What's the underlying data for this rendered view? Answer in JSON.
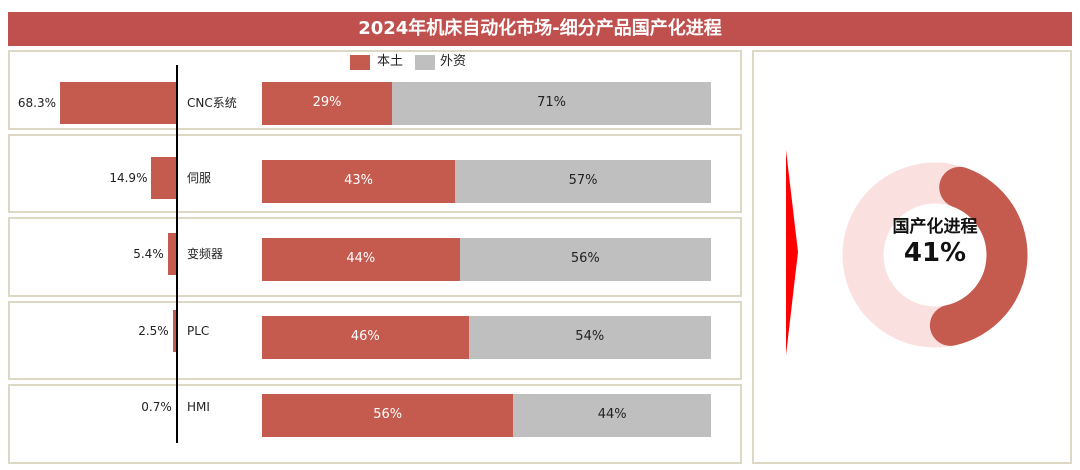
{
  "title": "2024年机床自动化市场-细分产品国产化进程",
  "colors": {
    "domestic": "#c55a4e",
    "foreign": "#bfbfbf",
    "title_bg": "#c0504d",
    "donut_track": "#fbe0e0"
  },
  "legend": [
    {
      "label": "本土",
      "color": "#c55a4e"
    },
    {
      "label": "外资",
      "color": "#bfbfbf"
    }
  ],
  "chart_data": [
    {
      "type": "bar",
      "orientation": "horizontal",
      "categories": [
        "CNC系统",
        "伺服",
        "变频器",
        "PLC",
        "HMI"
      ],
      "values": [
        68.3,
        14.9,
        5.4,
        2.5,
        0.7
      ],
      "value_labels": [
        "68.3%",
        "14.9%",
        "5.4%",
        "2.5%",
        "0.7%"
      ]
    },
    {
      "type": "bar",
      "stacked": true,
      "orientation": "horizontal",
      "normalized": true,
      "categories": [
        "CNC系统",
        "伺服",
        "变频器",
        "PLC",
        "HMI"
      ],
      "series": [
        {
          "name": "本土",
          "values": [
            29,
            43,
            44,
            46,
            56
          ],
          "labels": [
            "29%",
            "43%",
            "44%",
            "46%",
            "56%"
          ]
        },
        {
          "name": "外资",
          "values": [
            71,
            57,
            56,
            54,
            44
          ],
          "labels": [
            "71%",
            "57%",
            "56%",
            "54%",
            "44%"
          ]
        }
      ]
    },
    {
      "type": "pie",
      "donut": true,
      "label": "国产化进程",
      "value": 41,
      "value_label": "41%"
    }
  ]
}
